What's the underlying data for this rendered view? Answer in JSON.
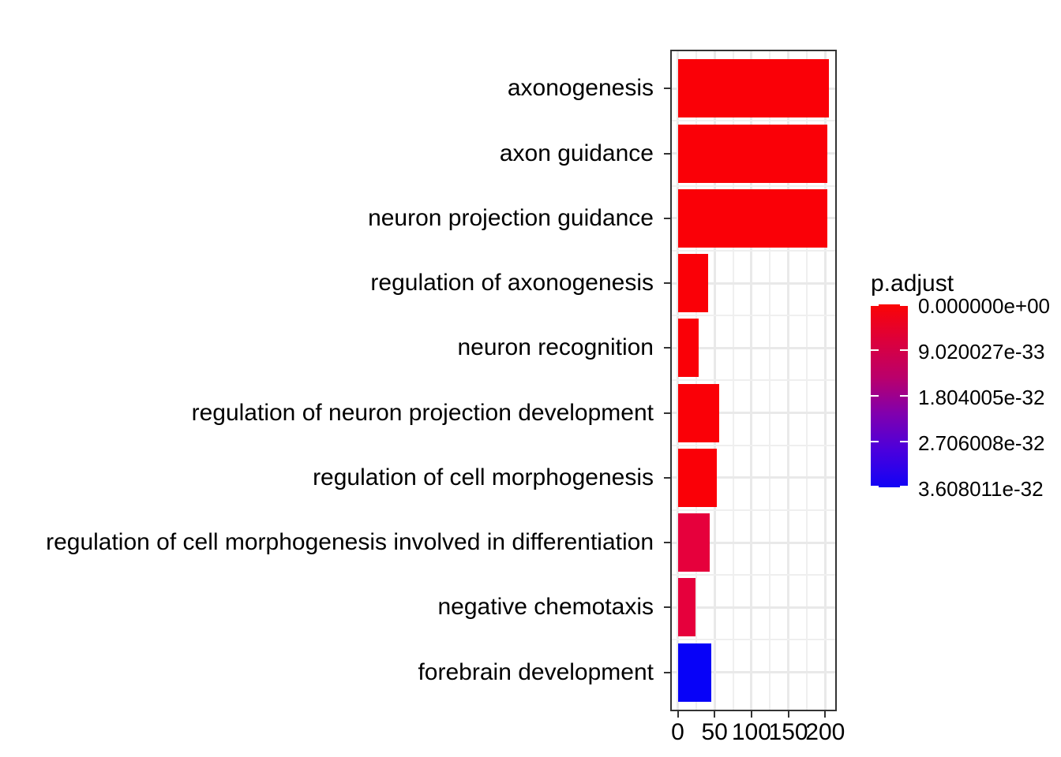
{
  "chart_data": {
    "type": "bar",
    "orientation": "horizontal",
    "title": "",
    "xlabel": "",
    "ylabel": "",
    "categories": [
      "axonogenesis",
      "axon guidance",
      "neuron projection guidance",
      "regulation of axonogenesis",
      "neuron recognition",
      "regulation of neuron projection development",
      "regulation of cell morphogenesis",
      "regulation of cell morphogenesis involved in differentiation",
      "negative chemotaxis",
      "forebrain development"
    ],
    "values": [
      205,
      203,
      203,
      41,
      28,
      56,
      53,
      43,
      24,
      46
    ],
    "bar_colors": [
      "#fa0007",
      "#fa0007",
      "#fa0007",
      "#fa0007",
      "#fa0007",
      "#fa0007",
      "#fa0007",
      "#e6003c",
      "#e6003c",
      "#0702f8"
    ],
    "x_ticks": [
      0,
      50,
      100,
      150,
      200
    ],
    "x_tick_labels": [
      "0",
      "50",
      "100",
      "150",
      "200"
    ],
    "x_minor_ticks": [
      25,
      75,
      125,
      175
    ],
    "xlim": [
      -10.2,
      214.2
    ],
    "grid": "major-and-minor",
    "legend_position": "right",
    "legend": {
      "title": "p.adjust",
      "tick_labels": [
        "0.000000e+00",
        "9.020027e-33",
        "1.804005e-32",
        "2.706008e-32",
        "3.608011e-32"
      ],
      "gradient_stops": [
        "#fb0405",
        "#dc003c",
        "#ba006b",
        "#8000af",
        "#4a00dd",
        "#1203f5"
      ]
    },
    "colors_meaning": "bar fill encodes p.adjust from red (0) to blue (3.608011e-32)"
  }
}
